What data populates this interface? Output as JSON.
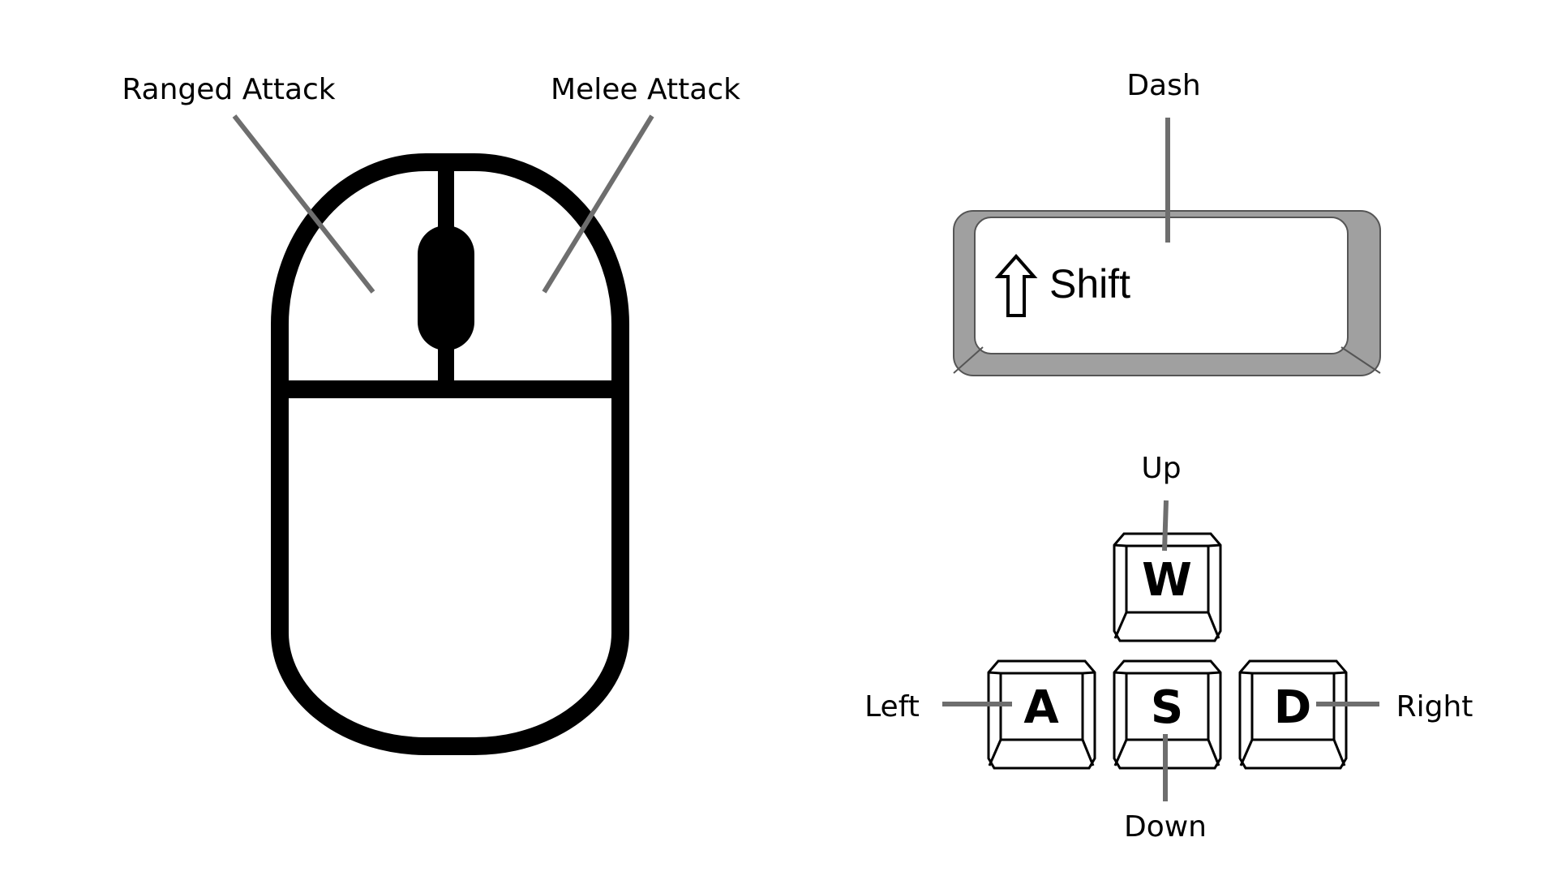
{
  "mouse": {
    "left_button_label": "Ranged Attack",
    "right_button_label": "Melee Attack"
  },
  "shift_key": {
    "action_label": "Dash",
    "key_text": "Shift",
    "icon": "up-arrow-outline-icon"
  },
  "wasd": {
    "up": {
      "key": "W",
      "label": "Up"
    },
    "left": {
      "key": "A",
      "label": "Left"
    },
    "down": {
      "key": "S",
      "label": "Down"
    },
    "right": {
      "key": "D",
      "label": "Right"
    }
  },
  "colors": {
    "leader_line": "#6e6e6e",
    "shift_key_border": "#a0a0a0",
    "outline": "#000000"
  }
}
